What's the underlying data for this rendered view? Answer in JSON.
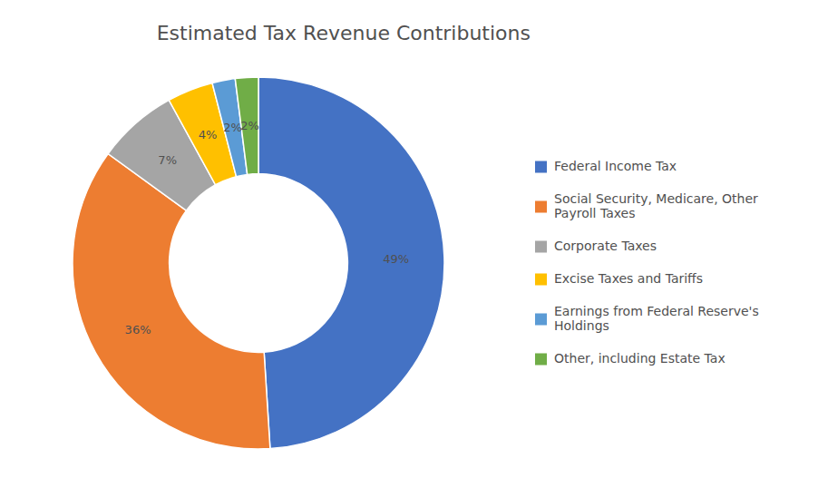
{
  "chart_data": {
    "type": "pie",
    "title": "Estimated Tax Revenue Contributions",
    "categories": [
      "Federal Income Tax",
      "Social Security, Medicare, Other\nPayroll Taxes",
      "Corporate Taxes",
      "Excise Taxes and Tariffs",
      "Earnings from Federal Reserve's\nHoldings",
      "Other, including Estate Tax"
    ],
    "values": [
      49,
      36,
      7,
      4,
      2,
      2
    ],
    "value_labels": [
      "49%",
      "36%",
      "7%",
      "4%",
      "2%",
      "2%"
    ],
    "colors": [
      "#4472C4",
      "#ED7D31",
      "#A5A5A5",
      "#FFC000",
      "#5B9BD5",
      "#70AD47"
    ],
    "data_labels": true,
    "legend": "right"
  }
}
